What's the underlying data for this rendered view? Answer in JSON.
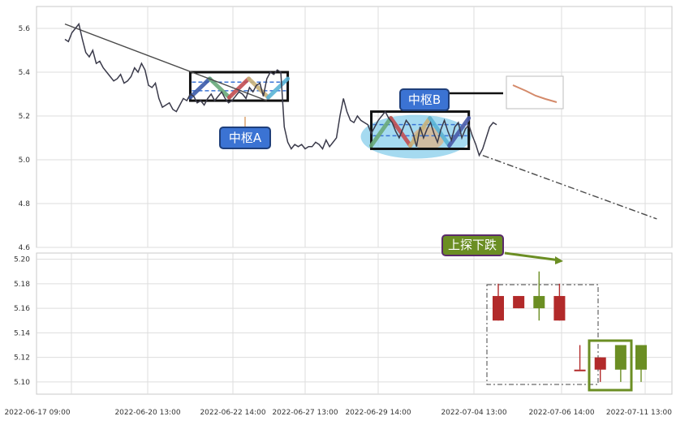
{
  "chart_data": [
    {
      "type": "line",
      "title": "",
      "xlabel": "",
      "ylabel": "",
      "ylim": [
        4.6,
        5.7
      ],
      "y_ticks": [
        "4.6",
        "4.8",
        "5.0",
        "5.2",
        "5.4",
        "5.6"
      ],
      "grid": true,
      "series": [
        {
          "values": [
            5.55,
            5.54,
            5.58,
            5.6,
            5.62,
            5.55,
            5.49,
            5.47,
            5.5,
            5.44,
            5.45,
            5.42,
            5.4,
            5.38,
            5.36,
            5.37,
            5.39,
            5.35,
            5.36,
            5.38,
            5.42,
            5.4,
            5.44,
            5.41,
            5.34,
            5.33,
            5.35,
            5.28,
            5.24,
            5.25,
            5.26,
            5.23,
            5.22,
            5.25,
            5.28,
            5.27,
            5.3,
            5.29,
            5.26,
            5.27,
            5.25,
            5.28,
            5.3,
            5.27,
            5.29,
            5.31,
            5.28,
            5.26,
            5.27,
            5.29,
            5.31,
            5.3,
            5.28,
            5.33,
            5.31,
            5.34,
            5.35,
            5.29,
            5.37,
            5.4,
            5.39,
            5.41,
            5.4,
            5.15,
            5.08,
            5.05,
            5.07,
            5.06,
            5.07,
            5.05,
            5.06,
            5.06,
            5.08,
            5.07,
            5.05,
            5.09,
            5.06,
            5.08,
            5.1,
            5.2,
            5.28,
            5.22,
            5.18,
            5.17,
            5.2,
            5.18,
            5.17,
            5.16,
            5.12,
            5.15,
            5.18,
            5.2,
            5.22,
            5.19,
            5.17,
            5.13,
            5.1,
            5.14,
            5.18,
            5.16,
            5.12,
            5.06,
            5.15,
            5.1,
            5.14,
            5.17,
            5.12,
            5.08,
            5.14,
            5.18,
            5.13,
            5.09,
            5.15,
            5.17,
            5.1,
            5.14,
            5.16,
            5.11,
            5.07,
            5.02,
            5.05,
            5.1,
            5.15,
            5.17,
            5.16
          ]
        }
      ],
      "trend_lines": [
        {
          "x": [
            0,
            58
          ],
          "y": [
            5.62,
            5.27
          ]
        },
        {
          "x": [
            120,
            170
          ],
          "y": [
            5.02,
            4.73
          ]
        }
      ],
      "zones": [
        {
          "label": "中枢A",
          "x": [
            36,
            64
          ],
          "y": [
            5.27,
            5.4
          ]
        },
        {
          "label": "中枢B",
          "x": [
            88,
            116
          ],
          "y": [
            5.05,
            5.22
          ]
        }
      ],
      "x_ticks": [
        "2022-06-17 09:00",
        "2022-06-20 13:00",
        "2022-06-22 14:00",
        "2022-06-27 13:00",
        "2022-06-29 14:00",
        "2022-07-04 13:00",
        "2022-07-06 14:00",
        "2022-07-11 13:00"
      ]
    },
    {
      "type": "candlestick",
      "title": "",
      "ylim": [
        5.09,
        5.205
      ],
      "y_ticks": [
        "5.10",
        "5.12",
        "5.14",
        "5.16",
        "5.18",
        "5.20"
      ],
      "grid": true,
      "annotation": "上探下跌",
      "candles": [
        {
          "o": 5.17,
          "c": 5.15,
          "h": 5.18,
          "l": 5.15,
          "color": "#b22a2a"
        },
        {
          "o": 5.17,
          "c": 5.16,
          "h": 5.17,
          "l": 5.16,
          "color": "#b22a2a"
        },
        {
          "o": 5.16,
          "c": 5.17,
          "h": 5.19,
          "l": 5.15,
          "color": "#6b8e23"
        },
        {
          "o": 5.17,
          "c": 5.15,
          "h": 5.18,
          "l": 5.15,
          "color": "#b22a2a"
        },
        {
          "o": 5.11,
          "c": 5.11,
          "h": 5.13,
          "l": 5.11,
          "color": "#b22a2a"
        },
        {
          "o": 5.12,
          "c": 5.11,
          "h": 5.12,
          "l": 5.1,
          "color": "#b22a2a"
        },
        {
          "o": 5.11,
          "c": 5.13,
          "h": 5.13,
          "l": 5.1,
          "color": "#6b8e23"
        },
        {
          "o": 5.13,
          "c": 5.11,
          "h": 5.13,
          "l": 5.1,
          "color": "#6b8e23"
        }
      ]
    }
  ]
}
